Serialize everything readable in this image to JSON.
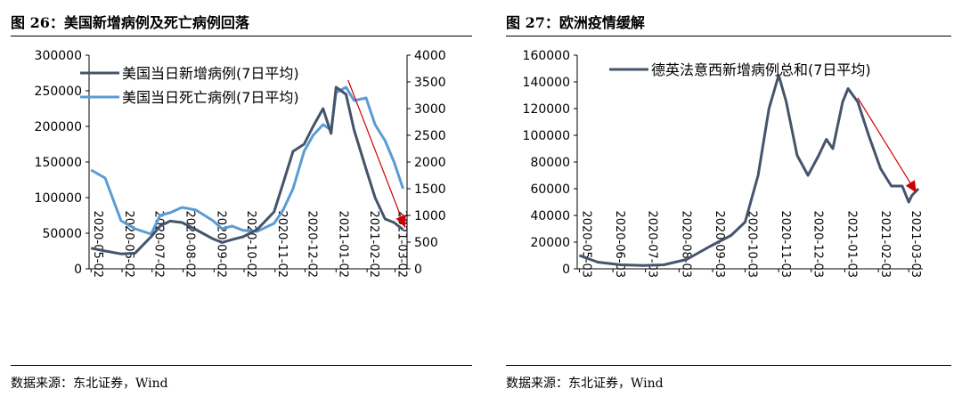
{
  "figures": [
    {
      "title": "图 26：美国新增病例及死亡病例回落",
      "source": "数据来源：东北证券，Wind"
    },
    {
      "title": "图 27：欧洲疫情缓解",
      "source": "数据来源：东北证券，Wind"
    }
  ],
  "chart_data": [
    {
      "type": "line",
      "title": "图 26：美国新增病例及死亡病例回落",
      "x_dates": [
        "2020-05-02",
        "2020-05-16",
        "2020-06-01",
        "2020-06-15",
        "2020-07-01",
        "2020-07-10",
        "2020-07-20",
        "2020-08-01",
        "2020-08-15",
        "2020-09-01",
        "2020-09-10",
        "2020-09-20",
        "2020-10-01",
        "2020-10-15",
        "2020-11-01",
        "2020-11-10",
        "2020-11-20",
        "2020-12-01",
        "2020-12-10",
        "2020-12-20",
        "2020-12-28",
        "2021-01-02",
        "2021-01-12",
        "2021-01-20",
        "2021-02-01",
        "2021-02-10",
        "2021-02-20",
        "2021-03-01",
        "2021-03-10"
      ],
      "x_tick_labels": [
        "2020-05-02",
        "2020-06-02",
        "2020-07-02",
        "2020-08-02",
        "2020-09-02",
        "2020-10-02",
        "2020-11-02",
        "2020-12-02",
        "2021-01-02",
        "2021-02-02",
        "2021-03-02"
      ],
      "series": [
        {
          "name": "美国当日新增病例(7日平均)",
          "axis": "left",
          "color": "#44546a",
          "values": [
            29000,
            25000,
            21000,
            22000,
            45000,
            60000,
            67000,
            65000,
            55000,
            42000,
            37000,
            41000,
            45000,
            55000,
            80000,
            120000,
            165000,
            175000,
            200000,
            225000,
            190000,
            255000,
            245000,
            195000,
            140000,
            100000,
            70000,
            65000,
            55000
          ]
        },
        {
          "name": "美国当日死亡病例(7日平均)",
          "axis": "right",
          "color": "#5b9bd5",
          "values": [
            1850,
            1700,
            900,
            750,
            650,
            1000,
            1050,
            1150,
            1100,
            900,
            750,
            800,
            720,
            700,
            850,
            1100,
            1500,
            2200,
            2500,
            2700,
            2600,
            3300,
            3400,
            3150,
            3200,
            2700,
            2400,
            2000,
            1500
          ]
        }
      ],
      "left_axis": {
        "ylim": [
          0,
          300000
        ],
        "ticks": [
          "0",
          "50000",
          "100000",
          "150000",
          "200000",
          "250000",
          "300000"
        ]
      },
      "right_axis": {
        "ylim": [
          0,
          4000
        ],
        "ticks": [
          "0",
          "500",
          "1000",
          "1500",
          "2000",
          "2500",
          "3000",
          "3500",
          "4000"
        ]
      },
      "legend_position": "top-left",
      "annotations": [
        {
          "type": "arrow",
          "color": "#cc0000",
          "from_date": "2021-01-14",
          "from_value": 265000,
          "to_date": "2021-03-12",
          "to_value": 58000,
          "axis": "left"
        }
      ]
    },
    {
      "type": "line",
      "title": "图 27：欧洲疫情缓解",
      "x_dates": [
        "2020-05-03",
        "2020-05-20",
        "2020-06-10",
        "2020-07-01",
        "2020-07-20",
        "2020-08-10",
        "2020-09-01",
        "2020-09-20",
        "2020-10-03",
        "2020-10-15",
        "2020-10-25",
        "2020-11-03",
        "2020-11-10",
        "2020-11-20",
        "2020-11-30",
        "2020-12-10",
        "2020-12-17",
        "2020-12-23",
        "2021-01-01",
        "2021-01-06",
        "2021-01-15",
        "2021-01-25",
        "2021-02-05",
        "2021-02-15",
        "2021-02-25",
        "2021-03-03",
        "2021-03-06",
        "2021-03-12"
      ],
      "x_tick_labels": [
        "2020-05-03",
        "2020-06-03",
        "2020-07-03",
        "2020-08-03",
        "2020-09-03",
        "2020-10-03",
        "2020-11-03",
        "2020-12-03",
        "2021-01-03",
        "2021-02-03",
        "2021-03-03"
      ],
      "series": [
        {
          "name": "德英法意西新增病例总和(7日平均)",
          "color": "#44546a",
          "values": [
            10000,
            5000,
            3000,
            2500,
            3000,
            7000,
            17000,
            25000,
            35000,
            70000,
            120000,
            145000,
            125000,
            85000,
            70000,
            85000,
            97000,
            90000,
            125000,
            135000,
            125000,
            100000,
            75000,
            62000,
            62000,
            50000,
            55000,
            60000
          ]
        }
      ],
      "ylim": [
        0,
        160000
      ],
      "y_ticks": [
        "0",
        "20000",
        "40000",
        "60000",
        "80000",
        "100000",
        "120000",
        "140000",
        "160000"
      ],
      "legend_position": "top-right",
      "annotations": [
        {
          "type": "arrow",
          "color": "#cc0000",
          "from_date": "2021-01-15",
          "from_value": 128000,
          "to_date": "2021-03-10",
          "to_value": 57000
        }
      ]
    }
  ]
}
